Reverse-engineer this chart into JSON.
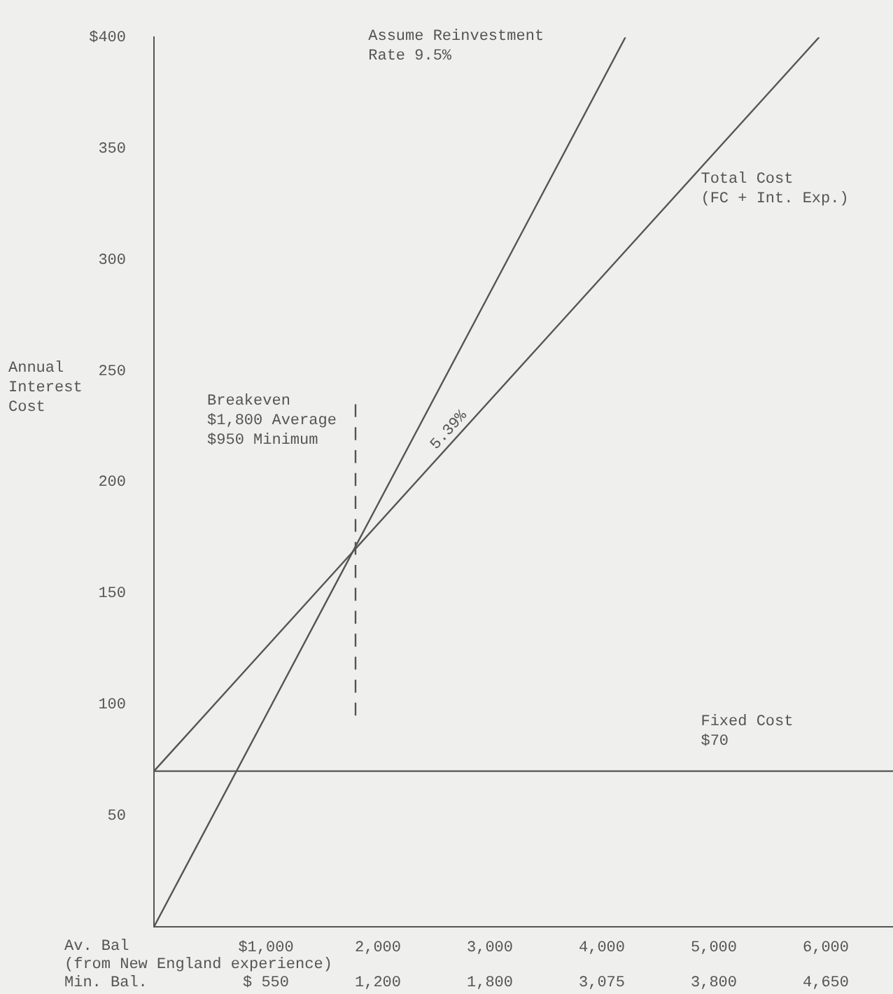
{
  "chart_data": {
    "type": "line",
    "ylabel": "Annual\nInterest\nCost",
    "xlabel": "Av. Bal\n(from New England experience)\nMin. Bal.",
    "xlim": [
      0,
      6600
    ],
    "ylim": [
      0,
      400
    ],
    "xticks": [
      {
        "value": 1000,
        "label": "$1,000"
      },
      {
        "value": 2000,
        "label": "2,000"
      },
      {
        "value": 3000,
        "label": "3,000"
      },
      {
        "value": 4000,
        "label": "4,000"
      },
      {
        "value": 5000,
        "label": "5,000"
      },
      {
        "value": 6000,
        "label": "6,000"
      }
    ],
    "yticks": [
      50,
      100,
      150,
      200,
      250,
      300,
      350,
      {
        "value": 400,
        "label": "$400"
      }
    ],
    "marker": "none",
    "line_style": "solid",
    "series": [
      {
        "color": "#555555",
        "x": [
          0,
          4210
        ],
        "values": [
          0,
          400
        ]
      },
      {
        "color": "#555555",
        "x": [
          0,
          5940
        ],
        "values": [
          70,
          400
        ]
      },
      {
        "color": "#555555",
        "x": [
          0,
          6600
        ],
        "values": [
          70,
          70
        ]
      },
      {
        "color": "#555555",
        "x": [
          1800,
          1800
        ],
        "values": [
          95,
          235
        ],
        "line_style": "dashed"
      }
    ],
    "annotations": [
      "Assume Reinvestment\nRate 9.5%",
      "Total Cost\n(FC + Int. Exp.)",
      "Fixed Cost\n$70",
      "Breakeven\n$1,800 Average\n$950 Minimum",
      "5.39%",
      "$ 550",
      "1,200",
      "1,800",
      "3,075",
      "3,800",
      "4,650"
    ]
  }
}
